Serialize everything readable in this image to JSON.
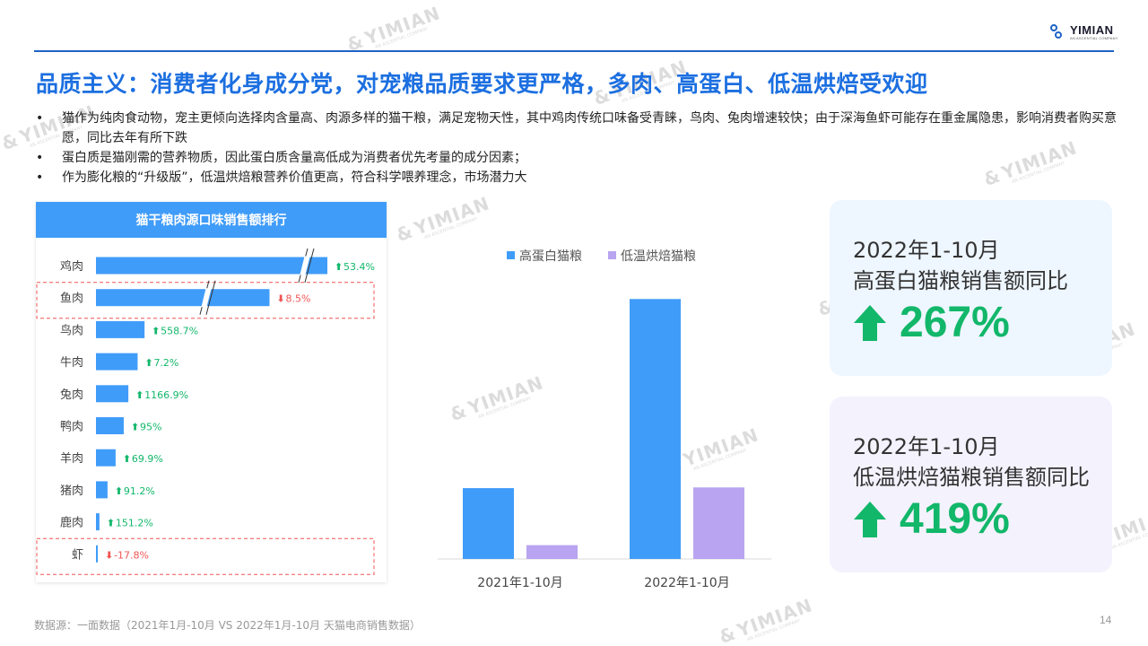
{
  "brand": {
    "name": "YIMIAN",
    "tagline": "AN ASCENTIAL COMPANY"
  },
  "watermark": {
    "text": "YIMIAN",
    "sub": "AN ASCENTIAL COMPANY"
  },
  "title": "品质主义：消费者化身成分党，对宠粮品质要求更严格，多肉、高蛋白、低温烘焙受欢迎",
  "bullets": [
    "猫作为纯肉食动物，宠主更倾向选择肉含量高、肉源多样的猫干粮，满足宠物天性，其中鸡肉传统口味备受青睐，鸟肉、兔肉增速较快；由于深海鱼虾可能存在重金属隐患，影响消费者购买意愿，同比去年有所下跌",
    "蛋白质是猫刚需的营养物质，因此蛋白质含量高低成为消费者优先考量的成分因素；",
    "作为膨化粮的“升级版”，低温烘焙粮营养价值更高，符合科学喂养理念，市场潜力大"
  ],
  "bullet_symbol": "•",
  "colors": {
    "accent": "#1c6fe0",
    "bar_blue": "#409cf9",
    "bar_purple": "#b8a4f0",
    "up": "#12b76a",
    "down": "#f05454"
  },
  "chart_data": [
    {
      "type": "bar",
      "orientation": "horizontal",
      "title": "猫干粮肉源口味销售额排行",
      "categories": [
        "鸡肉",
        "鱼肉",
        "鸟肉",
        "牛肉",
        "兔肉",
        "鸭肉",
        "羊肉",
        "猪肉",
        "鹿肉",
        "虾"
      ],
      "values": [
        100,
        75,
        21,
        18,
        14,
        12,
        8.5,
        5,
        1.5,
        0.8
      ],
      "axis_breaks": [
        "鸡肉",
        "鱼肉"
      ],
      "highlighted": [
        "鱼肉",
        "虾"
      ],
      "growth": [
        {
          "label": "53.4%",
          "dir": "up"
        },
        {
          "label": "8.5%",
          "dir": "down"
        },
        {
          "label": "558.7%",
          "dir": "up"
        },
        {
          "label": "7.2%",
          "dir": "up"
        },
        {
          "label": "1166.9%",
          "dir": "up"
        },
        {
          "label": "95%",
          "dir": "up"
        },
        {
          "label": "69.9%",
          "dir": "up"
        },
        {
          "label": "91.2%",
          "dir": "up"
        },
        {
          "label": "151.2%",
          "dir": "up"
        },
        {
          "label": "-17.8%",
          "dir": "down"
        }
      ]
    },
    {
      "type": "bar",
      "categories": [
        "2021年1-10月",
        "2022年1-10月"
      ],
      "series": [
        {
          "name": "高蛋白猫粮",
          "color": "#409cf9",
          "values": [
            100,
            367
          ]
        },
        {
          "name": "低温烘焙猫粮",
          "color": "#b8a4f0",
          "values": [
            19.5,
            101
          ]
        }
      ],
      "legend": "top-center",
      "ylim": [
        0,
        380
      ]
    }
  ],
  "kpis": [
    {
      "line1": "2022年1-10月",
      "line2": "高蛋白猫粮销售额同比",
      "value": "267%"
    },
    {
      "line1": "2022年1-10月",
      "line2": "低温烘焙猫粮销售额同比",
      "value": "419%"
    }
  ],
  "footer": "数据源：一面数据（2021年1月-10月  VS 2022年1月-10月 天猫电商销售数据）",
  "page_number": "14"
}
